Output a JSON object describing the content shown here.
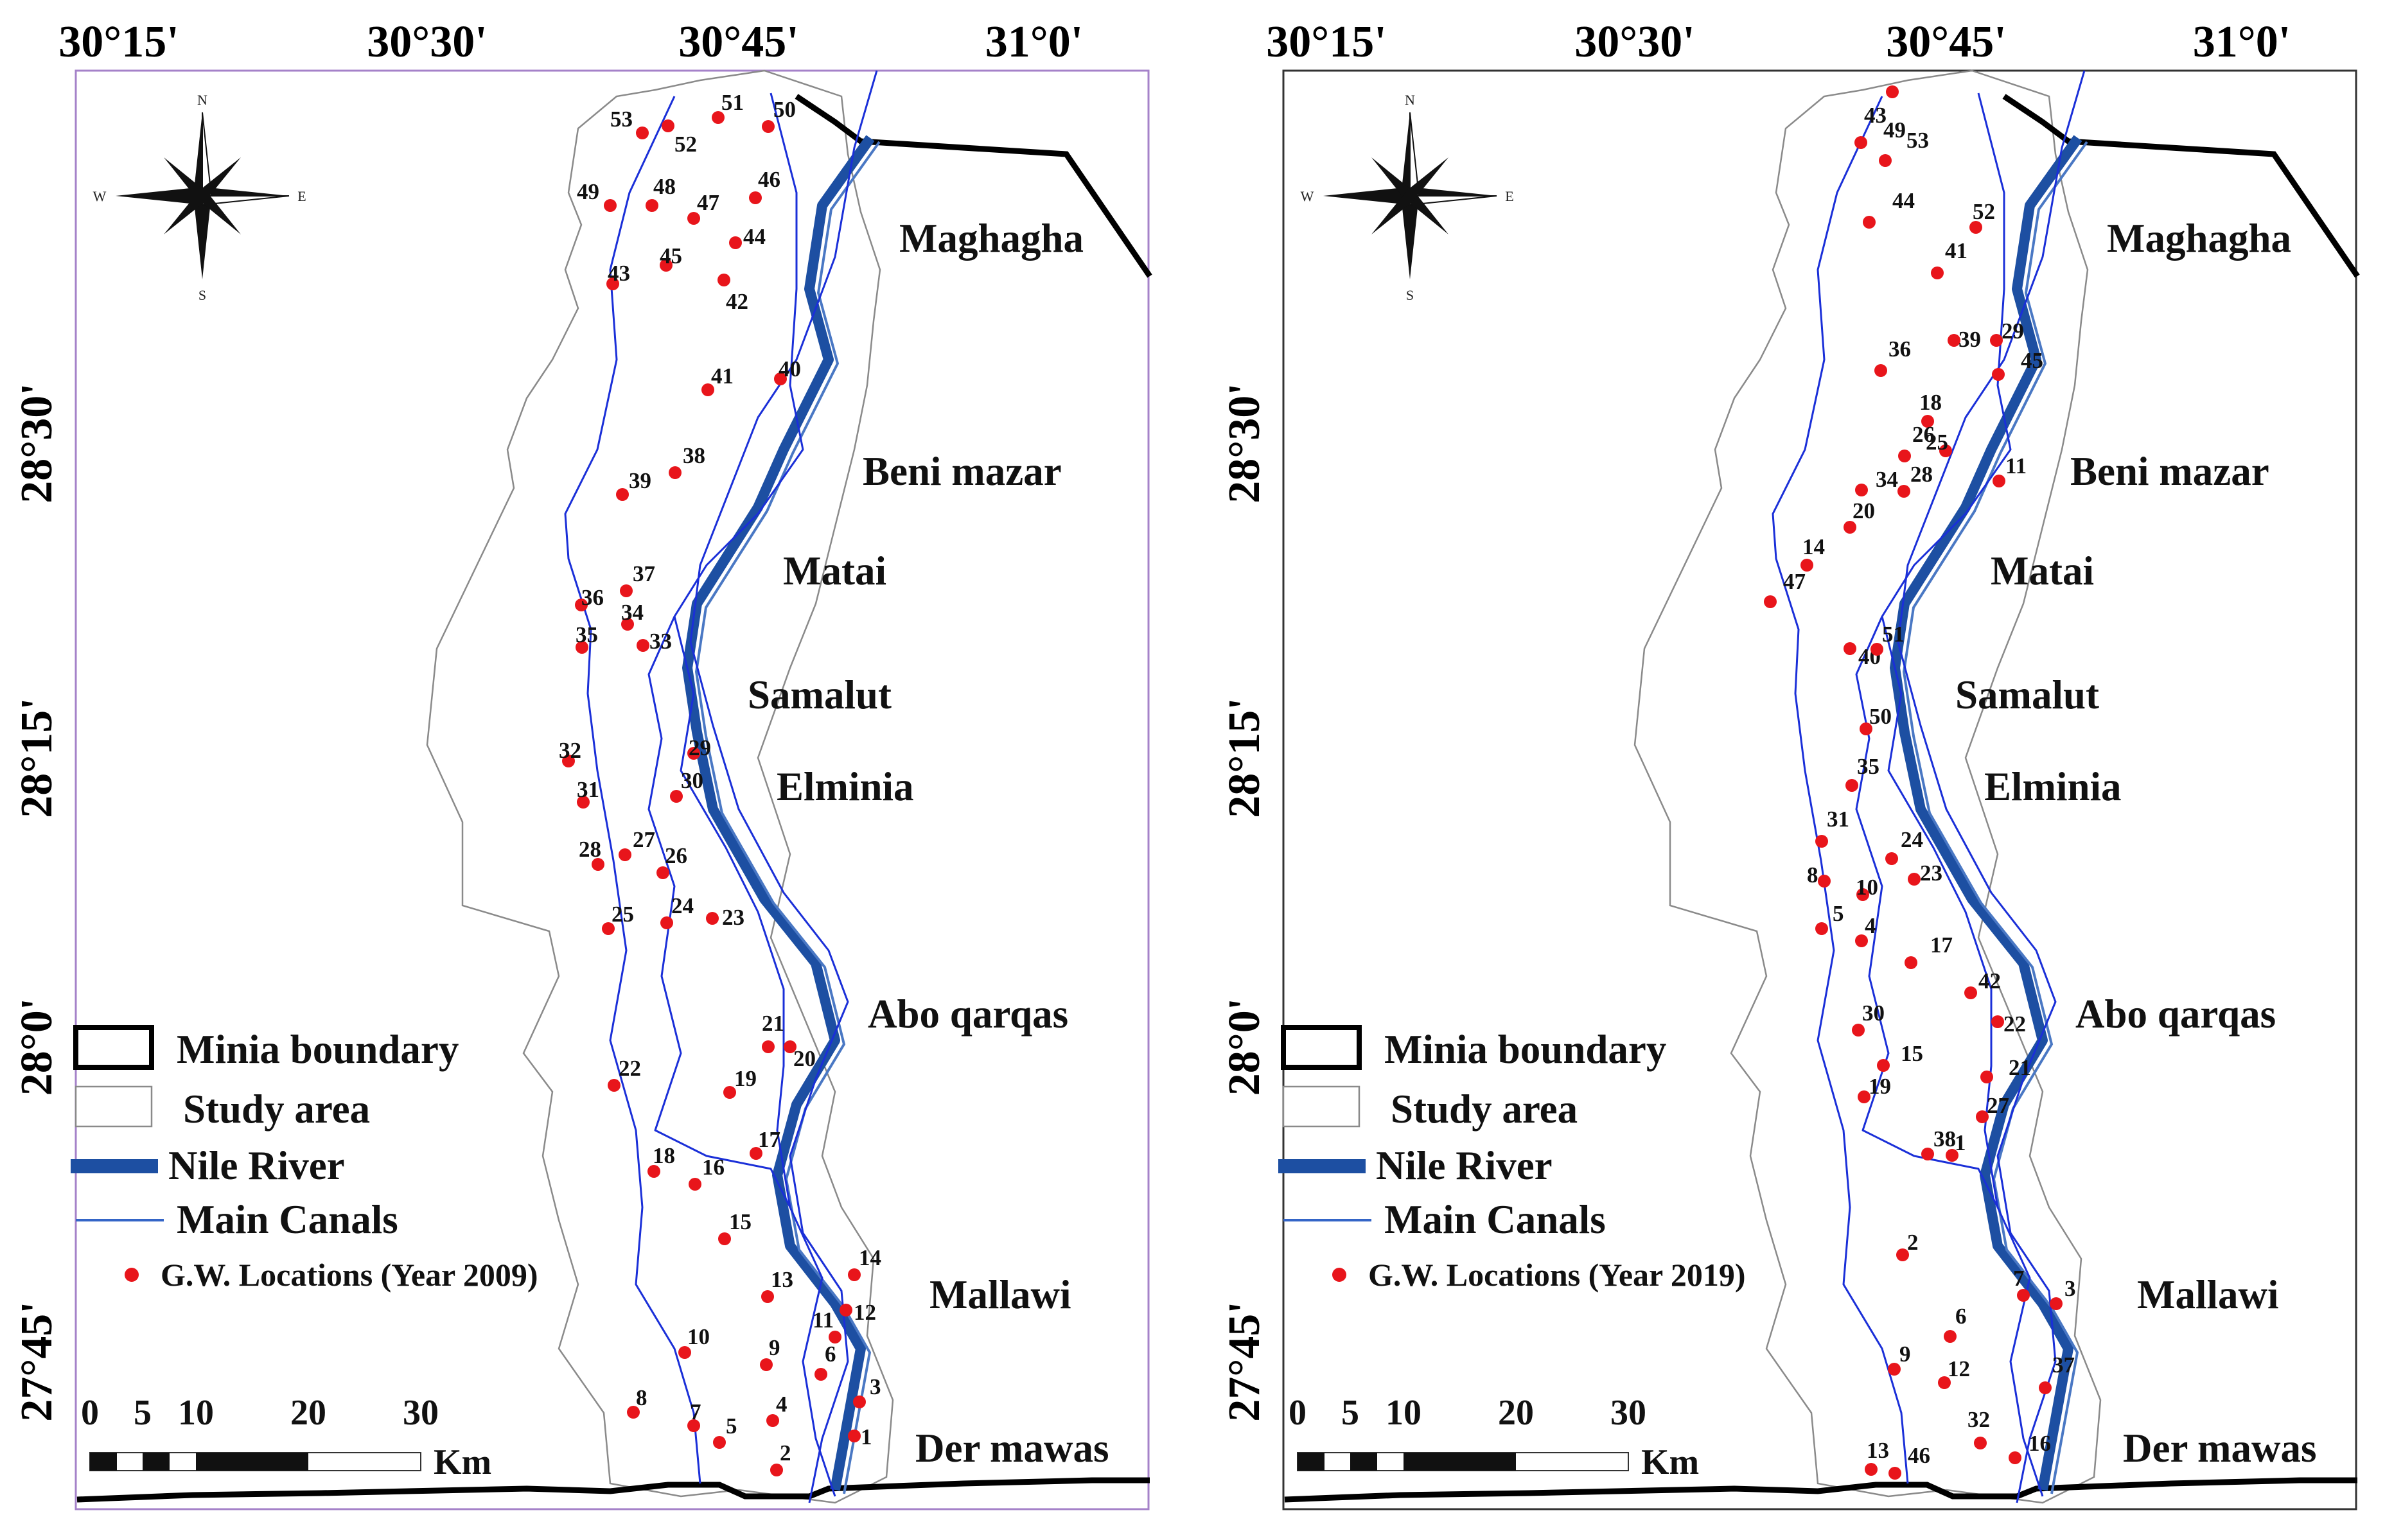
{
  "colors": {
    "points": "#e8151b",
    "nile": "#1d4fa2",
    "canal": "#1a2fd8",
    "study_area": "#8a8a8a",
    "boundary": "#000000",
    "left_frame": "#a582c9",
    "right_frame": "#333333"
  },
  "icons": {
    "compass": "north-arrow-compass-icon"
  },
  "compass_letters": {
    "n": "N",
    "s": "S",
    "e": "E",
    "w": "W"
  },
  "longitudes": [
    "30°15'",
    "30°30'",
    "30°45'",
    "31°0'"
  ],
  "latitudes": [
    "28°30'",
    "28°15'",
    "28°0'",
    "27°45'"
  ],
  "cities": [
    "Maghagha",
    "Beni mazar",
    "Matai",
    "Samalut",
    "Elminia",
    "Abo qarqas",
    "Mallawi",
    "Der mawas"
  ],
  "legend": {
    "boundary": "Minia boundary",
    "study_area": "Study area",
    "nile": "Nile River",
    "canals": "Main Canals"
  },
  "scale": {
    "ticks": [
      "0",
      "5",
      "10",
      "20",
      "30"
    ],
    "unit": "Km"
  },
  "maps": [
    {
      "id": "map-2009",
      "points_label": "G.W. Locations (Year 2009)",
      "wells": [
        {
          "id": "53"
        },
        {
          "id": "52"
        },
        {
          "id": "51"
        },
        {
          "id": "50"
        },
        {
          "id": "49"
        },
        {
          "id": "48"
        },
        {
          "id": "47"
        },
        {
          "id": "46"
        },
        {
          "id": "45"
        },
        {
          "id": "44"
        },
        {
          "id": "43"
        },
        {
          "id": "42"
        },
        {
          "id": "41"
        },
        {
          "id": "40"
        },
        {
          "id": "39"
        },
        {
          "id": "38"
        },
        {
          "id": "37"
        },
        {
          "id": "36"
        },
        {
          "id": "35"
        },
        {
          "id": "34"
        },
        {
          "id": "33"
        },
        {
          "id": "32"
        },
        {
          "id": "31"
        },
        {
          "id": "30"
        },
        {
          "id": "29"
        },
        {
          "id": "28"
        },
        {
          "id": "27"
        },
        {
          "id": "26"
        },
        {
          "id": "25"
        },
        {
          "id": "24"
        },
        {
          "id": "23"
        },
        {
          "id": "22"
        },
        {
          "id": "21"
        },
        {
          "id": "20"
        },
        {
          "id": "19"
        },
        {
          "id": "18"
        },
        {
          "id": "17"
        },
        {
          "id": "16"
        },
        {
          "id": "15"
        },
        {
          "id": "14"
        },
        {
          "id": "13"
        },
        {
          "id": "12"
        },
        {
          "id": "11"
        },
        {
          "id": "10"
        },
        {
          "id": "9"
        },
        {
          "id": "8"
        },
        {
          "id": "7"
        },
        {
          "id": "6"
        },
        {
          "id": "5"
        },
        {
          "id": "4"
        },
        {
          "id": "3"
        },
        {
          "id": "2"
        },
        {
          "id": "1"
        }
      ]
    },
    {
      "id": "map-2019",
      "points_label": "G.W. Locations (Year 2019)",
      "wells": [
        {
          "id": "43"
        },
        {
          "id": "49"
        },
        {
          "id": "53"
        },
        {
          "id": "44"
        },
        {
          "id": "52"
        },
        {
          "id": "41"
        },
        {
          "id": "39"
        },
        {
          "id": "29"
        },
        {
          "id": "45"
        },
        {
          "id": "36"
        },
        {
          "id": "18"
        },
        {
          "id": "26"
        },
        {
          "id": "25"
        },
        {
          "id": "28"
        },
        {
          "id": "11"
        },
        {
          "id": "34"
        },
        {
          "id": "20"
        },
        {
          "id": "14"
        },
        {
          "id": "47"
        },
        {
          "id": "40"
        },
        {
          "id": "51"
        },
        {
          "id": "50"
        },
        {
          "id": "35"
        },
        {
          "id": "31"
        },
        {
          "id": "24"
        },
        {
          "id": "23"
        },
        {
          "id": "8"
        },
        {
          "id": "10"
        },
        {
          "id": "5"
        },
        {
          "id": "4"
        },
        {
          "id": "17"
        },
        {
          "id": "42"
        },
        {
          "id": "22"
        },
        {
          "id": "30"
        },
        {
          "id": "15"
        },
        {
          "id": "21"
        },
        {
          "id": "19"
        },
        {
          "id": "27"
        },
        {
          "id": "38"
        },
        {
          "id": "1"
        },
        {
          "id": "2"
        },
        {
          "id": "7"
        },
        {
          "id": "3"
        },
        {
          "id": "6"
        },
        {
          "id": "9"
        },
        {
          "id": "12"
        },
        {
          "id": "37"
        },
        {
          "id": "32"
        },
        {
          "id": "16"
        },
        {
          "id": "13"
        },
        {
          "id": "46"
        }
      ]
    }
  ]
}
